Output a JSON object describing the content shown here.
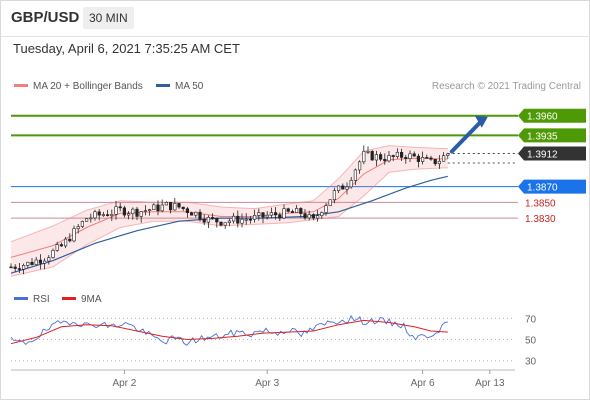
{
  "header": {
    "symbol": "GBP/USD",
    "timeframe": "30 MIN"
  },
  "datetime": "Tuesday, April 6, 2021 7:35:25 AM CET",
  "copyright": "Research © 2021 Trading Central",
  "colors": {
    "bollinger": "#f08080",
    "ma50": "#2f5f9e",
    "green": "#4e9a06",
    "blue": "#1a73e8",
    "red": "#cc2222",
    "dark": "#333333",
    "arrow": "#2a5ca8",
    "rsi": "#4a6fd6",
    "rsi_ma": "#e02020"
  },
  "chart_data": {
    "type": "candlestick",
    "legend": [
      {
        "name": "MA 20 + Bollinger Bands",
        "color": "#f08080"
      },
      {
        "name": "MA 50",
        "color": "#2f5f9e"
      }
    ],
    "x_labels": [
      "Apr 2",
      "Apr 3",
      "Apr 6",
      "Apr 13"
    ],
    "y_range": [
      1.3745,
      1.3985
    ],
    "levels": [
      {
        "value": 1.396,
        "label": "1.3960",
        "style": "green-tag"
      },
      {
        "value": 1.3935,
        "label": "1.3935",
        "style": "green-tag"
      },
      {
        "value": 1.3912,
        "label": "1.3912",
        "style": "dark-tag"
      },
      {
        "value": 1.387,
        "label": "1.3870",
        "style": "blue-tag"
      },
      {
        "value": 1.385,
        "label": "1.3850",
        "style": "red-text"
      },
      {
        "value": 1.383,
        "label": "1.3830",
        "style": "red-text"
      }
    ],
    "price_path": [
      [
        0,
        1.3768
      ],
      [
        4,
        1.3772
      ],
      [
        8,
        1.378
      ],
      [
        12,
        1.3794
      ],
      [
        15,
        1.3812
      ],
      [
        18,
        1.383
      ],
      [
        22,
        1.3835
      ],
      [
        26,
        1.384
      ],
      [
        30,
        1.3838
      ],
      [
        34,
        1.3842
      ],
      [
        37,
        1.3846
      ],
      [
        40,
        1.3844
      ],
      [
        44,
        1.3836
      ],
      [
        47,
        1.3828
      ],
      [
        50,
        1.3826
      ],
      [
        54,
        1.3828
      ],
      [
        58,
        1.383
      ],
      [
        62,
        1.3834
      ],
      [
        65,
        1.3836
      ],
      [
        69,
        1.3837
      ],
      [
        72,
        1.3826
      ],
      [
        74,
        1.3842
      ],
      [
        77,
        1.3862
      ],
      [
        80,
        1.3874
      ],
      [
        82,
        1.3893
      ],
      [
        84,
        1.391
      ],
      [
        87,
        1.3908
      ],
      [
        90,
        1.3906
      ],
      [
        94,
        1.391
      ],
      [
        97,
        1.3906
      ],
      [
        100,
        1.39
      ],
      [
        102,
        1.3904
      ],
      [
        104,
        1.3912
      ]
    ],
    "ma20": [
      [
        0,
        1.378
      ],
      [
        10,
        1.3795
      ],
      [
        18,
        1.3818
      ],
      [
        26,
        1.3836
      ],
      [
        34,
        1.3838
      ],
      [
        42,
        1.3838
      ],
      [
        50,
        1.3832
      ],
      [
        58,
        1.3832
      ],
      [
        66,
        1.3836
      ],
      [
        72,
        1.3838
      ],
      [
        78,
        1.3855
      ],
      [
        84,
        1.3886
      ],
      [
        90,
        1.3904
      ],
      [
        96,
        1.3906
      ],
      [
        104,
        1.3905
      ]
    ],
    "bollinger_upper": [
      [
        0,
        1.38
      ],
      [
        10,
        1.382
      ],
      [
        18,
        1.384
      ],
      [
        26,
        1.3852
      ],
      [
        34,
        1.385
      ],
      [
        42,
        1.385
      ],
      [
        50,
        1.3844
      ],
      [
        58,
        1.3842
      ],
      [
        66,
        1.3848
      ],
      [
        72,
        1.3852
      ],
      [
        78,
        1.388
      ],
      [
        84,
        1.3915
      ],
      [
        90,
        1.3922
      ],
      [
        96,
        1.392
      ],
      [
        104,
        1.3918
      ]
    ],
    "bollinger_lower": [
      [
        0,
        1.3756
      ],
      [
        10,
        1.3768
      ],
      [
        18,
        1.3796
      ],
      [
        26,
        1.3818
      ],
      [
        34,
        1.3826
      ],
      [
        42,
        1.3826
      ],
      [
        50,
        1.382
      ],
      [
        58,
        1.3822
      ],
      [
        66,
        1.3824
      ],
      [
        72,
        1.3828
      ],
      [
        78,
        1.3832
      ],
      [
        84,
        1.3858
      ],
      [
        90,
        1.3888
      ],
      [
        96,
        1.3892
      ],
      [
        104,
        1.3894
      ]
    ],
    "ma50": [
      [
        0,
        1.376
      ],
      [
        10,
        1.3776
      ],
      [
        20,
        1.3798
      ],
      [
        30,
        1.3814
      ],
      [
        40,
        1.3826
      ],
      [
        50,
        1.383
      ],
      [
        60,
        1.383
      ],
      [
        70,
        1.3832
      ],
      [
        78,
        1.3838
      ],
      [
        86,
        1.3852
      ],
      [
        94,
        1.3868
      ],
      [
        100,
        1.3878
      ],
      [
        104,
        1.3883
      ]
    ],
    "projection": {
      "from": [
        104,
        1.3912
      ],
      "to": [
        114,
        1.396
      ]
    },
    "rsi": {
      "legend": [
        {
          "name": "RSI",
          "color": "#4a6fd6"
        },
        {
          "name": "9MA",
          "color": "#e02020"
        }
      ],
      "y_range": [
        25,
        75
      ],
      "y_ticks": [
        70,
        50,
        30
      ],
      "rsi_path": [
        [
          0,
          49
        ],
        [
          3,
          46
        ],
        [
          6,
          52
        ],
        [
          9,
          60
        ],
        [
          12,
          66
        ],
        [
          15,
          68
        ],
        [
          18,
          63
        ],
        [
          21,
          65
        ],
        [
          24,
          62
        ],
        [
          27,
          66
        ],
        [
          30,
          60
        ],
        [
          33,
          54
        ],
        [
          36,
          48
        ],
        [
          39,
          51
        ],
        [
          42,
          47
        ],
        [
          45,
          51
        ],
        [
          48,
          52
        ],
        [
          51,
          54
        ],
        [
          54,
          57
        ],
        [
          57,
          55
        ],
        [
          60,
          59
        ],
        [
          63,
          56
        ],
        [
          66,
          60
        ],
        [
          69,
          54
        ],
        [
          72,
          60
        ],
        [
          75,
          65
        ],
        [
          78,
          68
        ],
        [
          81,
          70
        ],
        [
          84,
          67
        ],
        [
          87,
          68
        ],
        [
          90,
          66
        ],
        [
          93,
          64
        ],
        [
          96,
          52
        ],
        [
          99,
          53
        ],
        [
          102,
          60
        ],
        [
          104,
          64
        ]
      ],
      "ma_path": [
        [
          0,
          46
        ],
        [
          6,
          52
        ],
        [
          12,
          62
        ],
        [
          18,
          64
        ],
        [
          24,
          63
        ],
        [
          30,
          58
        ],
        [
          36,
          53
        ],
        [
          42,
          50
        ],
        [
          48,
          51
        ],
        [
          54,
          53
        ],
        [
          60,
          56
        ],
        [
          66,
          57
        ],
        [
          72,
          58
        ],
        [
          78,
          64
        ],
        [
          84,
          68
        ],
        [
          90,
          66
        ],
        [
          96,
          62
        ],
        [
          100,
          58
        ],
        [
          104,
          57
        ]
      ]
    }
  }
}
